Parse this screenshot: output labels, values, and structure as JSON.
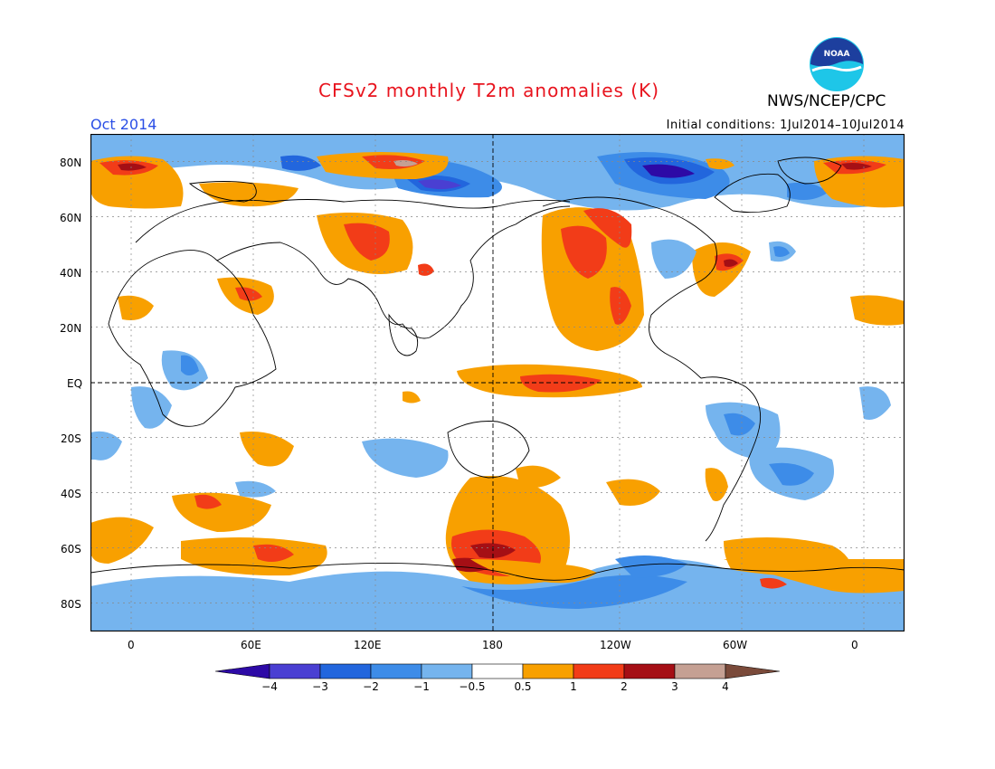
{
  "header": {
    "title": "CFSv2 monthly T2m anomalies (K)",
    "period": "Oct 2014",
    "initial_conditions": "Initial conditions: 1Jul2014–10Jul2014",
    "org": "NWS/NCEP/CPC",
    "logo_text": "NOAA"
  },
  "axes": {
    "lat_labels": [
      "80N",
      "60N",
      "40N",
      "20N",
      "EQ",
      "20S",
      "40S",
      "60S",
      "80S"
    ],
    "lon_labels": [
      "0",
      "60E",
      "120E",
      "180",
      "120W",
      "60W",
      "0"
    ]
  },
  "colorbar": {
    "labels": [
      "−4",
      "−3",
      "−2",
      "−1",
      "−0.5",
      "0.5",
      "1",
      "2",
      "3",
      "4"
    ],
    "colors": [
      "#2d0aa6",
      "#4a3fd2",
      "#2266dd",
      "#3d8ce8",
      "#75b4ee",
      "#ffffff",
      "#f8a000",
      "#f23c18",
      "#a50f15",
      "#c5a093",
      "#7a4a3a"
    ]
  },
  "map": {
    "projection": "cylindrical equidistant",
    "lon_range": [
      -20,
      380
    ],
    "lat_range": [
      -90,
      90
    ],
    "grid": "dashed",
    "colors": {
      "neg4": "#2d0aa6",
      "neg3": "#4a3fd2",
      "neg2": "#2266dd",
      "neg1": "#3d8ce8",
      "neg05": "#75b4ee",
      "pos05": "#f8a000",
      "pos1": "#f23c18",
      "pos2": "#a50f15",
      "pos3": "#c5a093"
    }
  }
}
